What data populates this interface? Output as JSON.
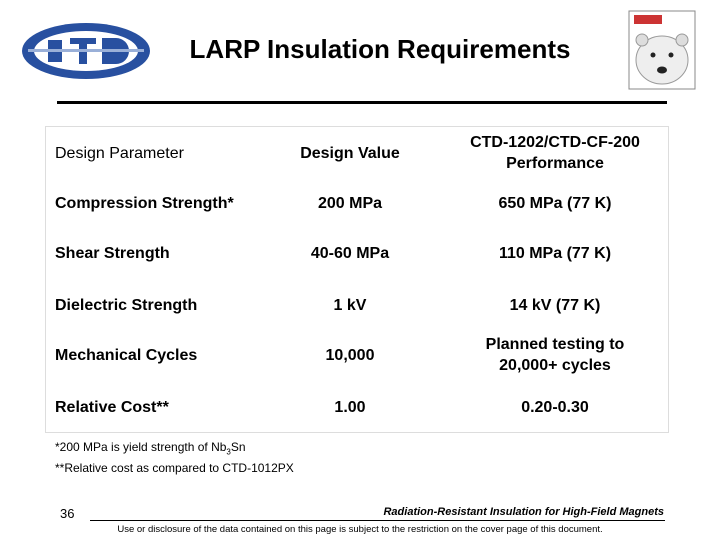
{
  "header": {
    "title": "LARP Insulation Requirements"
  },
  "table": {
    "header": [
      "Design Parameter",
      "Design Value",
      "CTD-1202/CTD-CF-200 Performance"
    ],
    "rows": [
      [
        "Compression Strength*",
        "200 MPa",
        "650 MPa (77 K)"
      ],
      [
        "Shear Strength",
        "40-60 MPa",
        "110 MPa (77 K)"
      ],
      [
        "Dielectric Strength",
        "1 kV",
        "14 kV (77 K)"
      ],
      [
        "Mechanical Cycles",
        "10,000",
        "Planned testing to 20,000+ cycles"
      ],
      [
        "Relative Cost**",
        "1.00",
        "0.20-0.30"
      ]
    ]
  },
  "notes": [
    [
      "*200 MPa is yield strength of Nb",
      "3",
      "Sn"
    ],
    [
      "**Relative cost as compared to CTD-1012PX"
    ]
  ],
  "footer": {
    "page": "36",
    "title": "Radiation-Resistant Insulation for High-Field Magnets",
    "disclaimer": "Use or disclosure of the data contained on this page is subject to the restriction on the cover page of this document."
  }
}
